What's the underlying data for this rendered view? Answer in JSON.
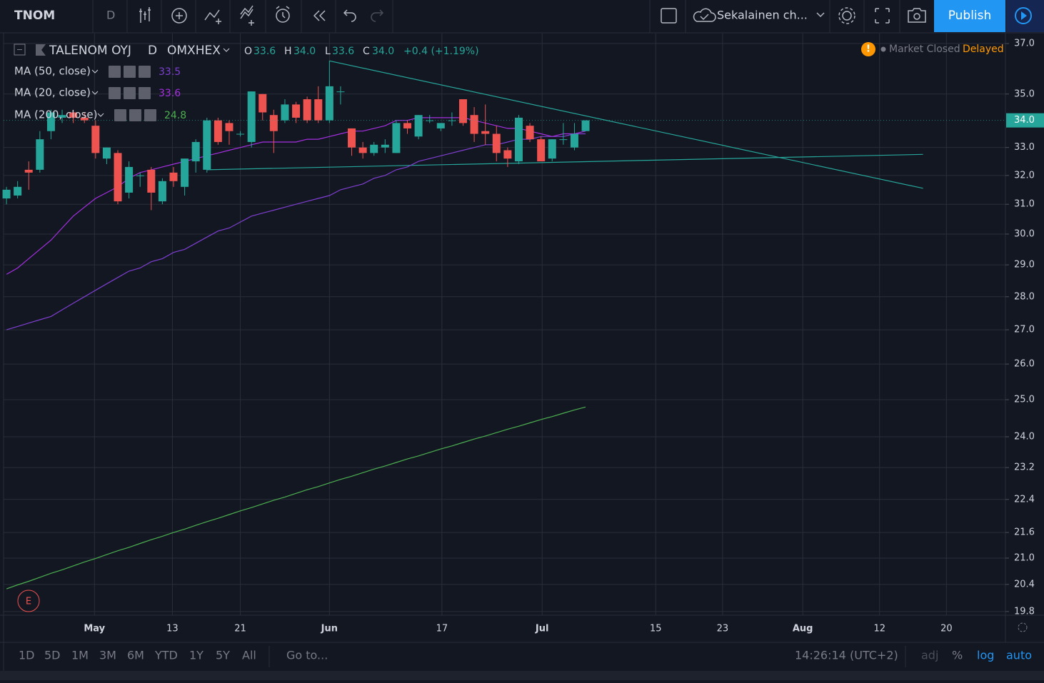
{
  "toolbar": {
    "symbol": "TNOM",
    "interval": "D",
    "layout": "Sekalainen ch...",
    "publish": "Publish"
  },
  "legend": {
    "name": "TALENOM OYJ",
    "interval": "D",
    "exchange": "OMXHEX",
    "o_key": "O",
    "o": "33.6",
    "h_key": "H",
    "h": "34.0",
    "l_key": "L",
    "l": "33.6",
    "c_key": "C",
    "c": "34.0",
    "change": "+0.4 (+1.19%)",
    "status": "Market Closed",
    "delayed": "Delayed",
    "badge": "E"
  },
  "bottom_bar": {
    "ranges": [
      "1D",
      "5D",
      "1M",
      "3M",
      "6M",
      "YTD",
      "1Y",
      "5Y",
      "All"
    ],
    "goto": "Go to...",
    "time": "14:26:14 (UTC+2)",
    "adj": "adj",
    "percent": "%",
    "log": "log",
    "auto": "auto"
  },
  "chart_data": {
    "type": "candlestick",
    "log_scale": true,
    "grid": true,
    "up_color": "#26a69a",
    "down_color": "#ef5350",
    "x": [
      0,
      1,
      2,
      3,
      4,
      5,
      6,
      7,
      8,
      9,
      10,
      11,
      12,
      13,
      14,
      15,
      16,
      17,
      18,
      19,
      20,
      21,
      22,
      23,
      24,
      25,
      26,
      27,
      28,
      29,
      30,
      31,
      32,
      33,
      34,
      35,
      36,
      37,
      38,
      39,
      40,
      41,
      42,
      43,
      44,
      45,
      46,
      47,
      48,
      49,
      50,
      51,
      52
    ],
    "open": [
      31.2,
      31.3,
      32.2,
      32.2,
      33.6,
      34.1,
      34.3,
      34.1,
      33.8,
      32.6,
      32.8,
      31.4,
      32.0,
      32.2,
      31.1,
      32.1,
      31.6,
      32.5,
      32.2,
      34.0,
      33.9,
      33.5,
      33.2,
      35.0,
      34.2,
      34.0,
      34.6,
      34.8,
      34.8,
      34.0,
      35.1,
      33.7,
      33.0,
      32.8,
      33.0,
      32.8,
      33.9,
      33.4,
      34.0,
      33.7,
      34.0,
      34.8,
      34.2,
      33.6,
      33.5,
      32.9,
      32.5,
      33.8,
      33.3,
      32.6,
      33.3,
      33.0,
      33.6
    ],
    "high": [
      31.6,
      31.8,
      32.5,
      33.6,
      34.4,
      34.4,
      34.4,
      34.3,
      34.0,
      33.0,
      32.9,
      32.5,
      32.1,
      32.3,
      31.9,
      32.3,
      32.6,
      33.3,
      34.1,
      34.1,
      34.0,
      33.6,
      35.1,
      35.0,
      34.4,
      34.8,
      34.7,
      34.9,
      35.3,
      36.3,
      35.3,
      33.7,
      33.2,
      33.2,
      33.3,
      34.0,
      34.0,
      34.2,
      34.2,
      33.9,
      34.3,
      34.8,
      34.5,
      34.6,
      33.8,
      33.0,
      34.2,
      33.9,
      33.4,
      33.3,
      33.9,
      33.9,
      34.0
    ],
    "low": [
      31.0,
      31.2,
      31.5,
      32.1,
      33.3,
      33.9,
      33.9,
      33.9,
      32.6,
      32.4,
      31.0,
      31.2,
      31.6,
      30.8,
      31.0,
      31.6,
      31.3,
      32.1,
      32.1,
      33.1,
      33.1,
      33.4,
      33.0,
      34.0,
      32.8,
      33.9,
      33.9,
      33.9,
      33.9,
      33.9,
      34.6,
      32.7,
      32.6,
      32.7,
      32.8,
      32.8,
      33.5,
      33.3,
      33.9,
      33.6,
      33.8,
      33.8,
      33.2,
      33.1,
      32.5,
      32.3,
      32.4,
      33.2,
      32.5,
      32.5,
      33.1,
      32.9,
      33.6
    ],
    "close": [
      31.5,
      31.6,
      32.1,
      33.3,
      34.3,
      34.2,
      34.1,
      34.0,
      32.8,
      33.0,
      31.1,
      32.3,
      32.0,
      31.4,
      31.8,
      31.8,
      32.6,
      33.2,
      34.0,
      33.2,
      33.6,
      33.5,
      35.1,
      34.3,
      33.6,
      34.6,
      34.1,
      34.0,
      34.0,
      35.3,
      35.1,
      33.0,
      32.8,
      33.1,
      33.1,
      33.9,
      33.7,
      34.2,
      34.0,
      33.9,
      34.0,
      33.9,
      33.5,
      33.5,
      32.8,
      32.6,
      34.1,
      33.3,
      32.5,
      33.3,
      33.3,
      33.5,
      34.0
    ],
    "series": [
      {
        "name": "MA (50, close)",
        "color": "#7e3fd0",
        "legend_value": 33.5,
        "values": [
          27.0,
          27.1,
          27.2,
          27.3,
          27.4,
          27.6,
          27.8,
          28.0,
          28.2,
          28.4,
          28.6,
          28.8,
          28.9,
          29.1,
          29.2,
          29.4,
          29.5,
          29.7,
          29.9,
          30.1,
          30.2,
          30.4,
          30.6,
          30.7,
          30.8,
          30.9,
          31.0,
          31.1,
          31.2,
          31.3,
          31.5,
          31.6,
          31.7,
          31.9,
          32.0,
          32.2,
          32.3,
          32.5,
          32.6,
          32.7,
          32.8,
          32.9,
          33.0,
          33.1,
          33.1,
          33.2,
          33.3,
          33.3,
          33.4,
          33.4,
          33.4,
          33.5,
          33.5
        ]
      },
      {
        "name": "MA (20, close)",
        "color": "#a52fe0",
        "legend_value": 33.6,
        "values": [
          28.7,
          28.9,
          29.2,
          29.5,
          29.8,
          30.2,
          30.6,
          30.9,
          31.2,
          31.4,
          31.6,
          31.9,
          32.1,
          32.2,
          32.3,
          32.4,
          32.5,
          32.6,
          32.7,
          32.8,
          32.9,
          33.0,
          33.1,
          33.2,
          33.2,
          33.2,
          33.2,
          33.3,
          33.3,
          33.4,
          33.5,
          33.6,
          33.6,
          33.7,
          33.8,
          34.0,
          34.0,
          34.1,
          34.1,
          34.1,
          34.1,
          34.1,
          34.0,
          33.9,
          33.8,
          33.7,
          33.7,
          33.6,
          33.5,
          33.4,
          33.5,
          33.5,
          33.6
        ]
      },
      {
        "name": "MA (200, close)",
        "color": "#4caf50",
        "legend_value": 24.8,
        "values": [
          20.3,
          20.39,
          20.47,
          20.56,
          20.65,
          20.73,
          20.82,
          20.91,
          20.99,
          21.08,
          21.17,
          21.25,
          21.34,
          21.43,
          21.51,
          21.6,
          21.68,
          21.77,
          21.86,
          21.94,
          22.03,
          22.12,
          22.2,
          22.29,
          22.38,
          22.46,
          22.55,
          22.64,
          22.72,
          22.81,
          22.9,
          22.98,
          23.07,
          23.16,
          23.24,
          23.33,
          23.42,
          23.5,
          23.59,
          23.68,
          23.76,
          23.85,
          23.94,
          24.02,
          24.11,
          24.2,
          24.28,
          24.37,
          24.46,
          24.54,
          24.63,
          24.72,
          24.8
        ]
      }
    ],
    "trendlines": [
      {
        "color": "#26a69a",
        "x": [
          29,
          82.3
        ],
        "y": [
          36.3,
          31.55
        ]
      },
      {
        "color": "#26a69a",
        "x": [
          18,
          82.3
        ],
        "y": [
          32.2,
          32.75
        ]
      }
    ],
    "xlim": [
      -0.26,
      89.7
    ],
    "ylim": [
      19.72,
      37.41
    ],
    "xticks": [
      {
        "value": 7.9,
        "label": "May"
      },
      {
        "value": 14.9,
        "label": "13"
      },
      {
        "value": 21,
        "label": "21"
      },
      {
        "value": 29,
        "label": "Jun"
      },
      {
        "value": 39.1,
        "label": "17"
      },
      {
        "value": 48.1,
        "label": "Jul"
      },
      {
        "value": 58.3,
        "label": "15"
      },
      {
        "value": 64.3,
        "label": "23"
      },
      {
        "value": 71.5,
        "label": "Aug"
      },
      {
        "value": 78.4,
        "label": "12"
      },
      {
        "value": 84.4,
        "label": "20"
      }
    ],
    "yticks": [
      {
        "value": 19.8,
        "label": "19.8"
      },
      {
        "value": 20.4,
        "label": "20.4"
      },
      {
        "value": 21.0,
        "label": "21.0"
      },
      {
        "value": 21.6,
        "label": "21.6"
      },
      {
        "value": 22.4,
        "label": "22.4"
      },
      {
        "value": 23.2,
        "label": "23.2"
      },
      {
        "value": 24.0,
        "label": "24.0"
      },
      {
        "value": 25.0,
        "label": "25.0"
      },
      {
        "value": 26.0,
        "label": "26.0"
      },
      {
        "value": 27.0,
        "label": "27.0"
      },
      {
        "value": 28.0,
        "label": "28.0"
      },
      {
        "value": 29.0,
        "label": "29.0"
      },
      {
        "value": 30.0,
        "label": "30.0"
      },
      {
        "value": 31.0,
        "label": "31.0"
      },
      {
        "value": 32.0,
        "label": "32.0"
      },
      {
        "value": 33.0,
        "label": "33.0"
      },
      {
        "value": 35.0,
        "label": "35.0"
      },
      {
        "value": 37.0,
        "label": "37.0"
      }
    ],
    "last_price": {
      "value": 34.0,
      "label": "34.0"
    }
  }
}
